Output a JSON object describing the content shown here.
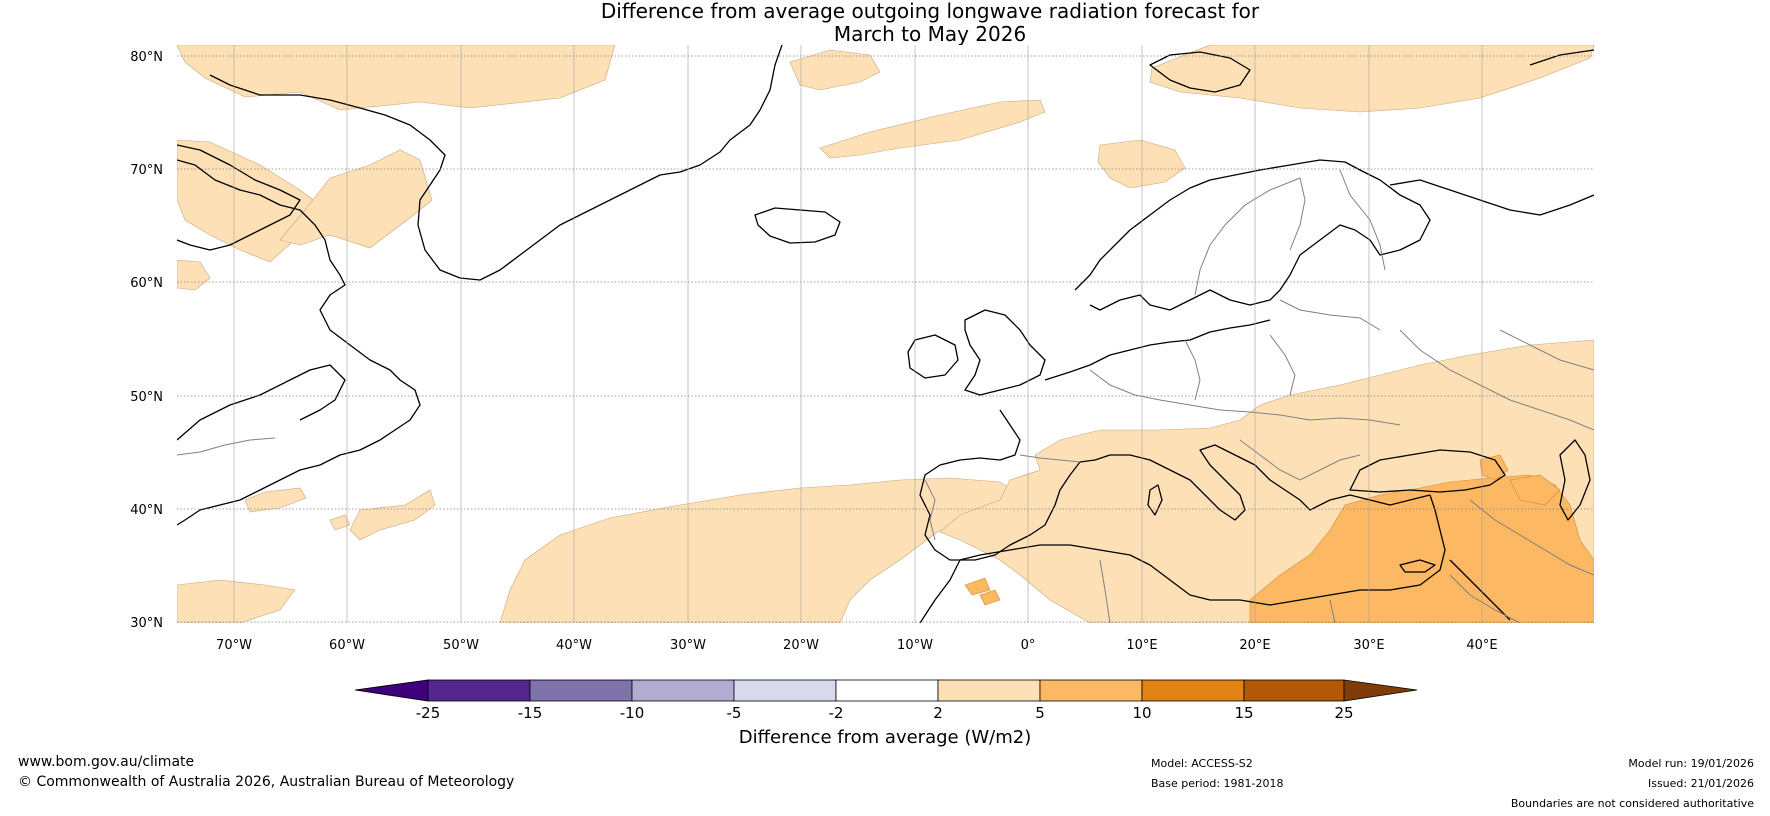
{
  "title": {
    "line1": "Difference from average outgoing longwave radiation forecast for",
    "line2": "March to May 2026"
  },
  "map": {
    "lat_labels": [
      "80°N",
      "70°N",
      "60°N",
      "50°N",
      "40°N",
      "30°N"
    ],
    "lon_labels": [
      "70°W",
      "60°W",
      "50°W",
      "40°W",
      "30°W",
      "20°W",
      "10°W",
      "0°",
      "10°E",
      "20°E",
      "30°E",
      "40°E"
    ],
    "land_color": "#ffffff",
    "coast_color": "#000000",
    "border_color": "#808080"
  },
  "colorbar": {
    "ticks": [
      "-25",
      "-15",
      "-10",
      "-5",
      "-2",
      "2",
      "5",
      "10",
      "15",
      "25"
    ],
    "colors": [
      "#3f007d",
      "#54278f",
      "#8073ac",
      "#b2abd2",
      "#d8daeb",
      "#ffffff",
      "#fee0b6",
      "#fdb863",
      "#e08214",
      "#b35806",
      "#7f3b08"
    ],
    "label": "Difference from average (W/m2)"
  },
  "footer": {
    "url": "www.bom.gov.au/climate",
    "copyright": "© Commonwealth of Australia 2026, Australian Bureau of Meteorology",
    "model": "Model: ACCESS-S2",
    "base_period": "Base period: 1981-2018",
    "model_run": "Model run: 19/01/2026",
    "issued": "Issued: 21/01/2026",
    "disclaimer": "Boundaries are not considered authoritative"
  }
}
